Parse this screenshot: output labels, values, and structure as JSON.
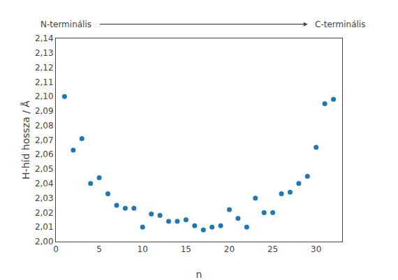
{
  "chart_data": {
    "type": "scatter",
    "x": [
      1,
      2,
      3,
      4,
      5,
      6,
      7,
      8,
      9,
      10,
      11,
      12,
      13,
      14,
      15,
      16,
      17,
      18,
      19,
      20,
      21,
      22,
      23,
      24,
      25,
      26,
      27,
      28,
      29,
      30,
      31,
      32
    ],
    "values": [
      2.1,
      2.063,
      2.071,
      2.04,
      2.044,
      2.033,
      2.025,
      2.023,
      2.023,
      2.01,
      2.019,
      2.018,
      2.014,
      2.014,
      2.015,
      2.011,
      2.008,
      2.01,
      2.011,
      2.022,
      2.016,
      2.01,
      2.03,
      2.02,
      2.02,
      2.033,
      2.034,
      2.04,
      2.045,
      2.065,
      2.095,
      2.098
    ],
    "x_label": "n",
    "y_label": "H-híd hossza / Å",
    "xlim": [
      0,
      33
    ],
    "ylim": [
      2.0,
      2.14
    ],
    "xticks": [
      0,
      5,
      10,
      15,
      20,
      25,
      30
    ],
    "yticks": [
      {
        "value": 2.0,
        "label": "2,00"
      },
      {
        "value": 2.01,
        "label": "2,01"
      },
      {
        "value": 2.02,
        "label": "2,02"
      },
      {
        "value": 2.03,
        "label": "2,03"
      },
      {
        "value": 2.04,
        "label": "2,04"
      },
      {
        "value": 2.05,
        "label": "2,05"
      },
      {
        "value": 2.06,
        "label": "2,06"
      },
      {
        "value": 2.07,
        "label": "2,07"
      },
      {
        "value": 2.08,
        "label": "2,08"
      },
      {
        "value": 2.09,
        "label": "2,09"
      },
      {
        "value": 2.1,
        "label": "2,10"
      },
      {
        "value": 2.11,
        "label": "2,11"
      },
      {
        "value": 2.12,
        "label": "2,12"
      },
      {
        "value": 2.13,
        "label": "2,13"
      },
      {
        "value": 2.14,
        "label": "2,14"
      }
    ],
    "annotations": [
      "N-terminális",
      "C-terminális"
    ],
    "grid": false
  }
}
